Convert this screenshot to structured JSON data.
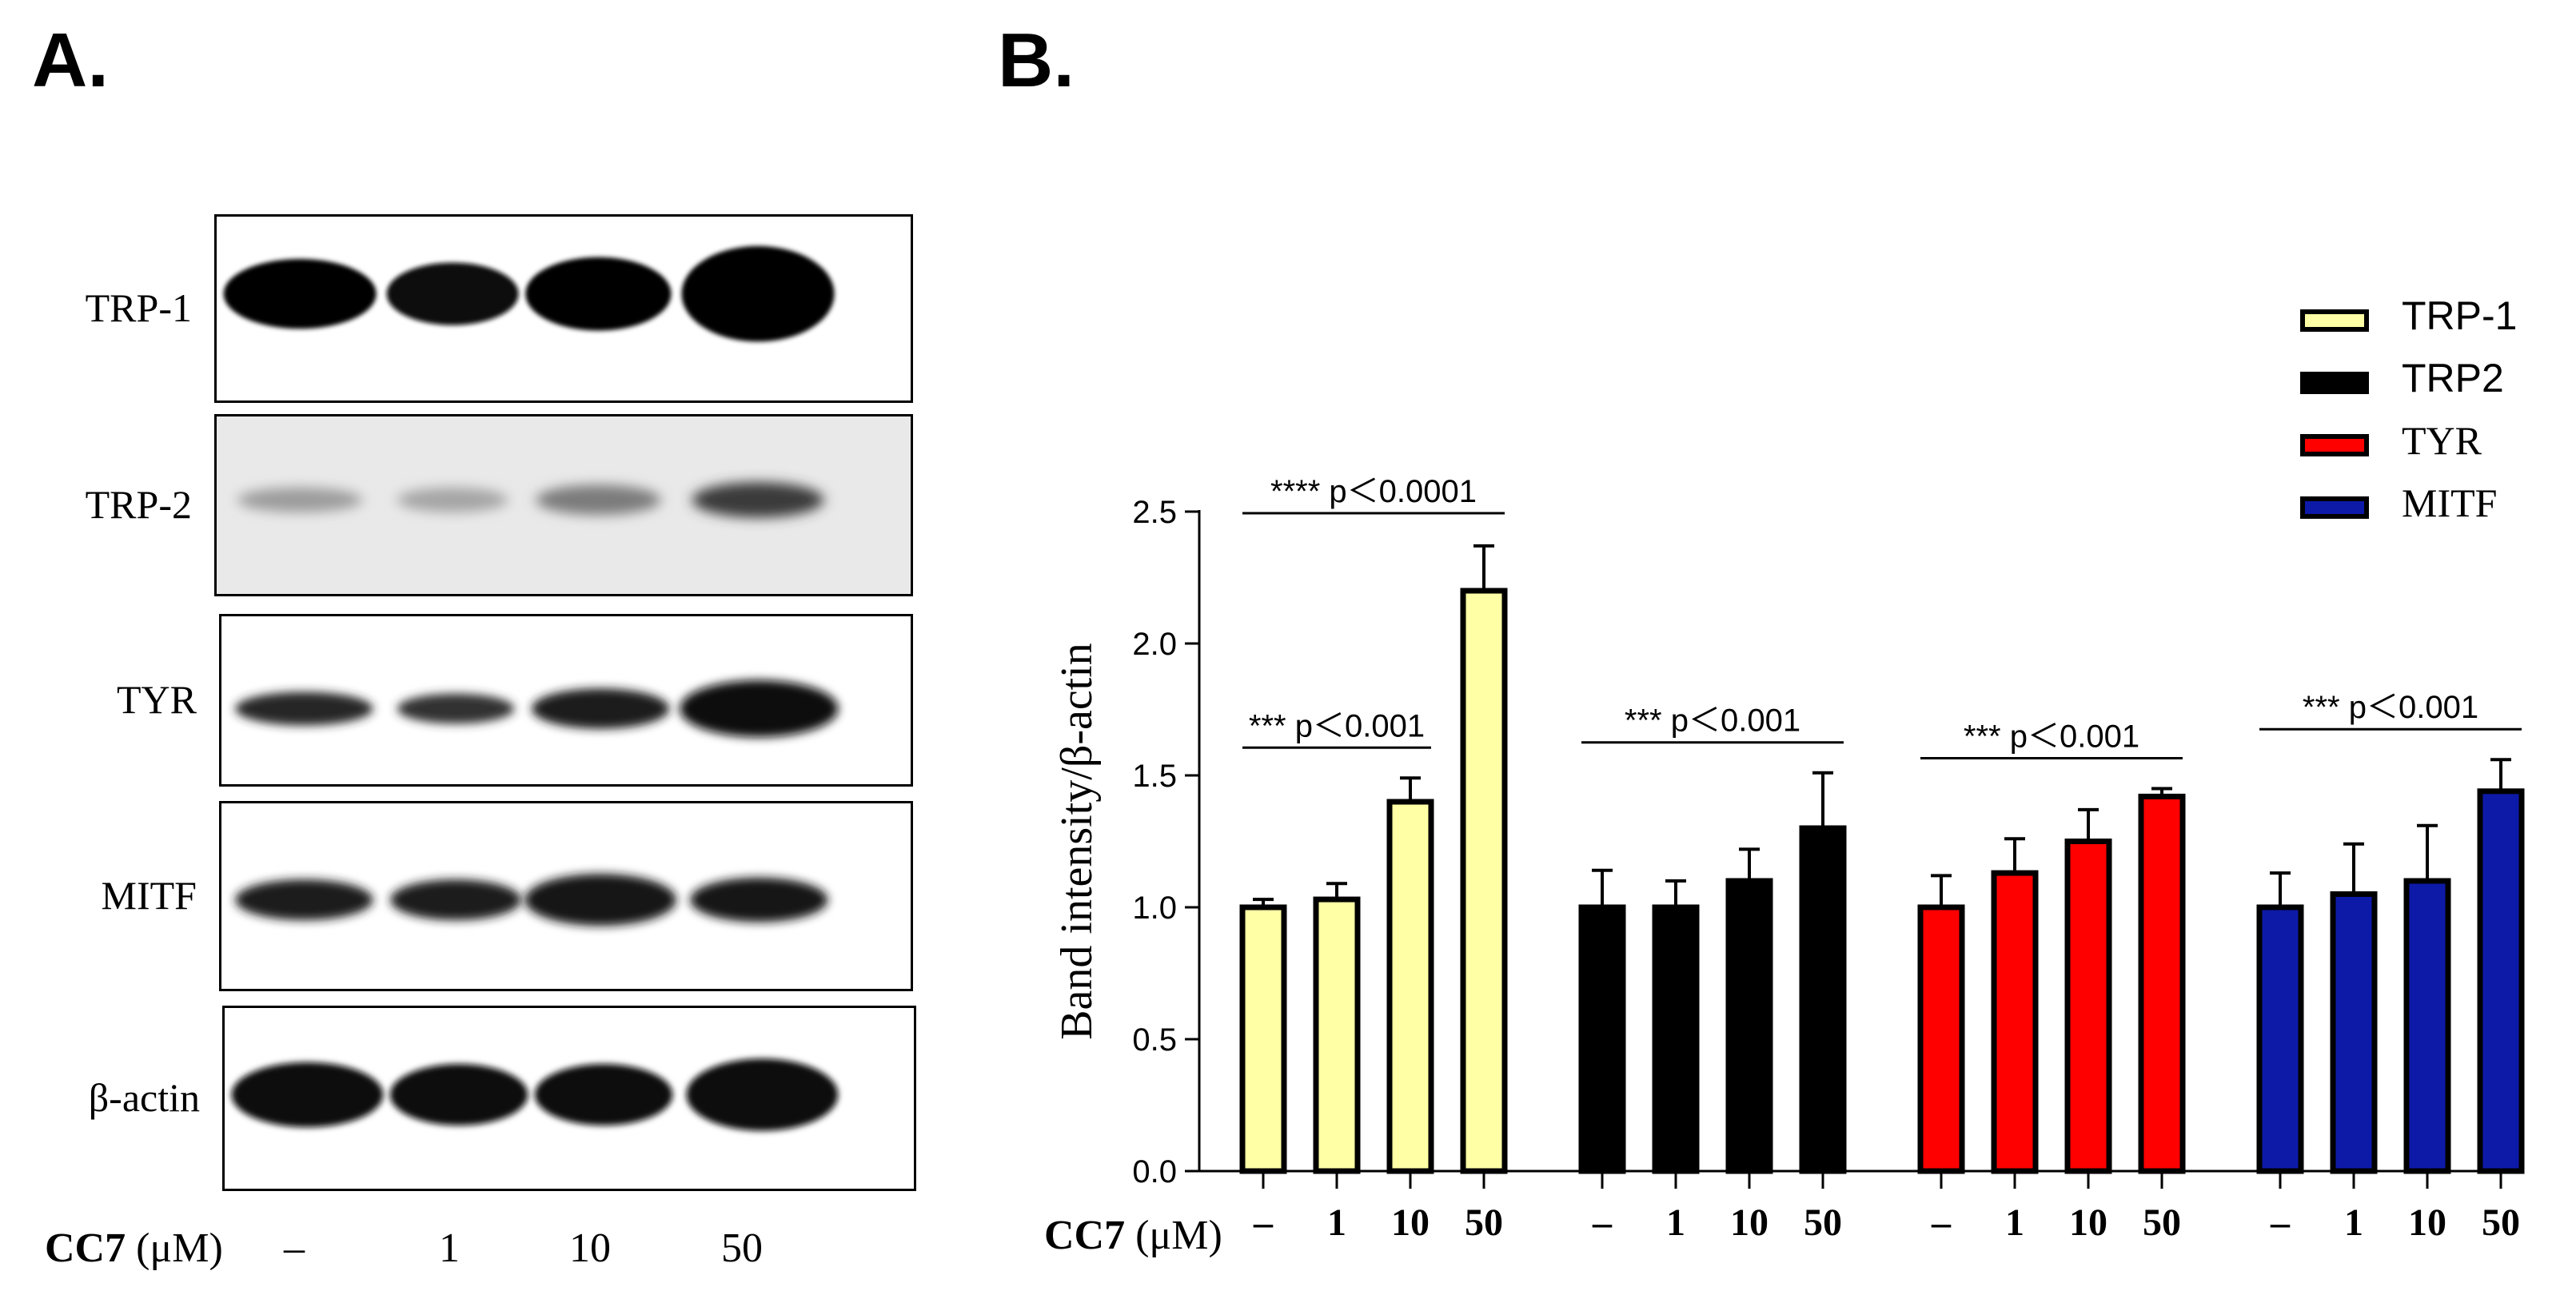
{
  "panel_a": {
    "letter": "A.",
    "rows": [
      {
        "label": "TRP-1"
      },
      {
        "label": "TRP-2"
      },
      {
        "label": "TYR"
      },
      {
        "label": "MITF"
      },
      {
        "label": "β-actin"
      }
    ],
    "treatment_name": "CC7",
    "treatment_unit": "(μM)",
    "lanes": [
      "–",
      "1",
      "10",
      "50"
    ]
  },
  "panel_b": {
    "letter": "B.",
    "treatment_name": "CC7",
    "treatment_unit": "(μM)"
  },
  "chart_data": {
    "type": "bar",
    "title": "",
    "ylabel": "Band intensity/β-actin",
    "xlabel": "CC7 (μM)",
    "ylim": [
      0,
      2.5
    ],
    "yticks": [
      "0.0",
      "0.5",
      "1.0",
      "1.5",
      "2.0",
      "2.5"
    ],
    "categories": [
      "–",
      "1",
      "10",
      "50"
    ],
    "series": [
      {
        "name": "TRP-1",
        "color": "#ffffa6",
        "values": [
          1.0,
          1.03,
          1.4,
          2.2
        ],
        "errors": [
          0.03,
          0.06,
          0.09,
          0.17
        ]
      },
      {
        "name": "TRP2",
        "color": "#000000",
        "values": [
          1.0,
          1.0,
          1.1,
          1.3
        ],
        "errors": [
          0.14,
          0.1,
          0.12,
          0.21
        ]
      },
      {
        "name": "TYR",
        "color": "#ff0000",
        "values": [
          1.0,
          1.13,
          1.25,
          1.42
        ],
        "errors": [
          0.12,
          0.13,
          0.12,
          0.03
        ]
      },
      {
        "name": "MITF",
        "color": "#0d1aa8",
        "values": [
          1.0,
          1.05,
          1.1,
          1.44
        ],
        "errors": [
          0.13,
          0.19,
          0.21,
          0.12
        ]
      }
    ],
    "annotations": [
      {
        "series": 0,
        "from": 0,
        "to": 2,
        "text": "*** p＜0.001"
      },
      {
        "series": 0,
        "from": 0,
        "to": 3,
        "text": "**** p＜0.0001"
      },
      {
        "series": 1,
        "from": 0,
        "to": 3,
        "text": "*** p＜0.001"
      },
      {
        "series": 2,
        "from": 0,
        "to": 3,
        "text": "*** p＜0.001"
      },
      {
        "series": 3,
        "from": 0,
        "to": 3,
        "text": "*** p＜0.001"
      }
    ],
    "legend": {
      "placement": "top-right",
      "entries": [
        "TRP-1",
        "TRP2",
        "TYR",
        "MITF"
      ]
    }
  }
}
